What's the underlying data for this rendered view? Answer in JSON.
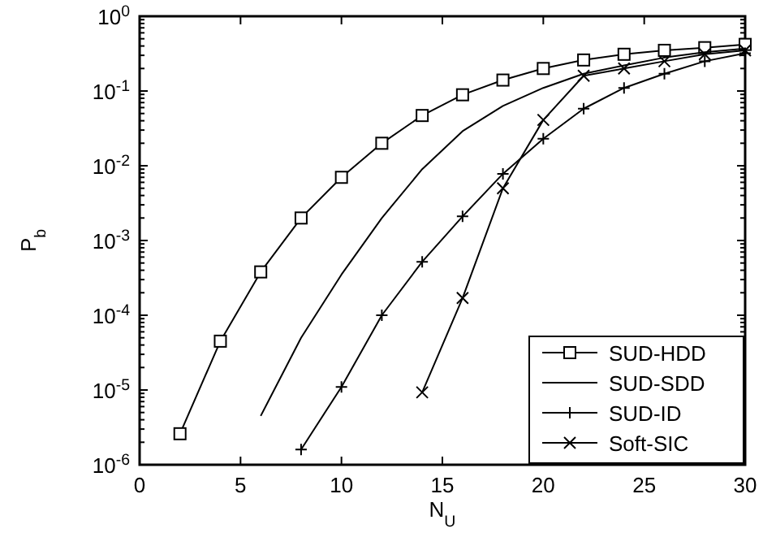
{
  "chart_data": {
    "type": "line",
    "xlabel": "N$_{U}$",
    "ylabel": "P$_{b}$",
    "log": "y",
    "grid": false,
    "legend": "bottom right",
    "line_style": "solid",
    "xlim": [
      0,
      30
    ],
    "xticks": [
      0,
      5,
      10,
      15,
      20,
      25,
      30
    ],
    "ylim": [
      1e-06,
      1
    ],
    "yticks": [
      {
        "value": 1e-06,
        "label": "10$^{-6}$"
      },
      {
        "value": 1e-05,
        "label": "10$^{-5}$"
      },
      {
        "value": 0.0001,
        "label": "10$^{-4}$"
      },
      {
        "value": 0.001,
        "label": "10$^{-3}$"
      },
      {
        "value": 0.01,
        "label": "10$^{-2}$"
      },
      {
        "value": 0.1,
        "label": "10$^{-1}$"
      },
      {
        "value": 1,
        "label": "10$^{0}$"
      }
    ],
    "x": [
      2,
      4,
      6,
      8,
      10,
      12,
      14,
      16,
      18,
      20,
      22,
      24,
      26,
      28,
      30
    ],
    "series": [
      {
        "name": "SUD-HDD",
        "color": "#000000",
        "marker": "square",
        "values": [
          2.6e-06,
          4.5e-05,
          0.00038,
          0.002,
          0.007,
          0.02,
          0.047,
          0.089,
          0.14,
          0.2,
          0.26,
          0.31,
          0.35,
          0.38,
          0.42
        ]
      },
      {
        "name": "SUD-SDD",
        "color": "#000000",
        "marker": "none",
        "values": [
          null,
          null,
          4.5e-06,
          5e-05,
          0.00035,
          0.002,
          0.009,
          0.029,
          0.063,
          0.11,
          0.17,
          0.22,
          0.28,
          0.33,
          0.37
        ]
      },
      {
        "name": "SUD-ID",
        "color": "#000000",
        "marker": "plus",
        "values": [
          null,
          null,
          null,
          1.6e-06,
          1.1e-05,
          0.0001,
          0.00052,
          0.0021,
          0.0078,
          0.023,
          0.058,
          0.11,
          0.17,
          0.25,
          0.32
        ]
      },
      {
        "name": "Soft-SIC",
        "color": "#000000",
        "marker": "cross",
        "values": [
          null,
          null,
          null,
          null,
          null,
          null,
          9.3e-06,
          0.00017,
          0.005,
          0.041,
          0.16,
          0.2,
          0.25,
          0.31,
          0.35
        ]
      }
    ]
  }
}
